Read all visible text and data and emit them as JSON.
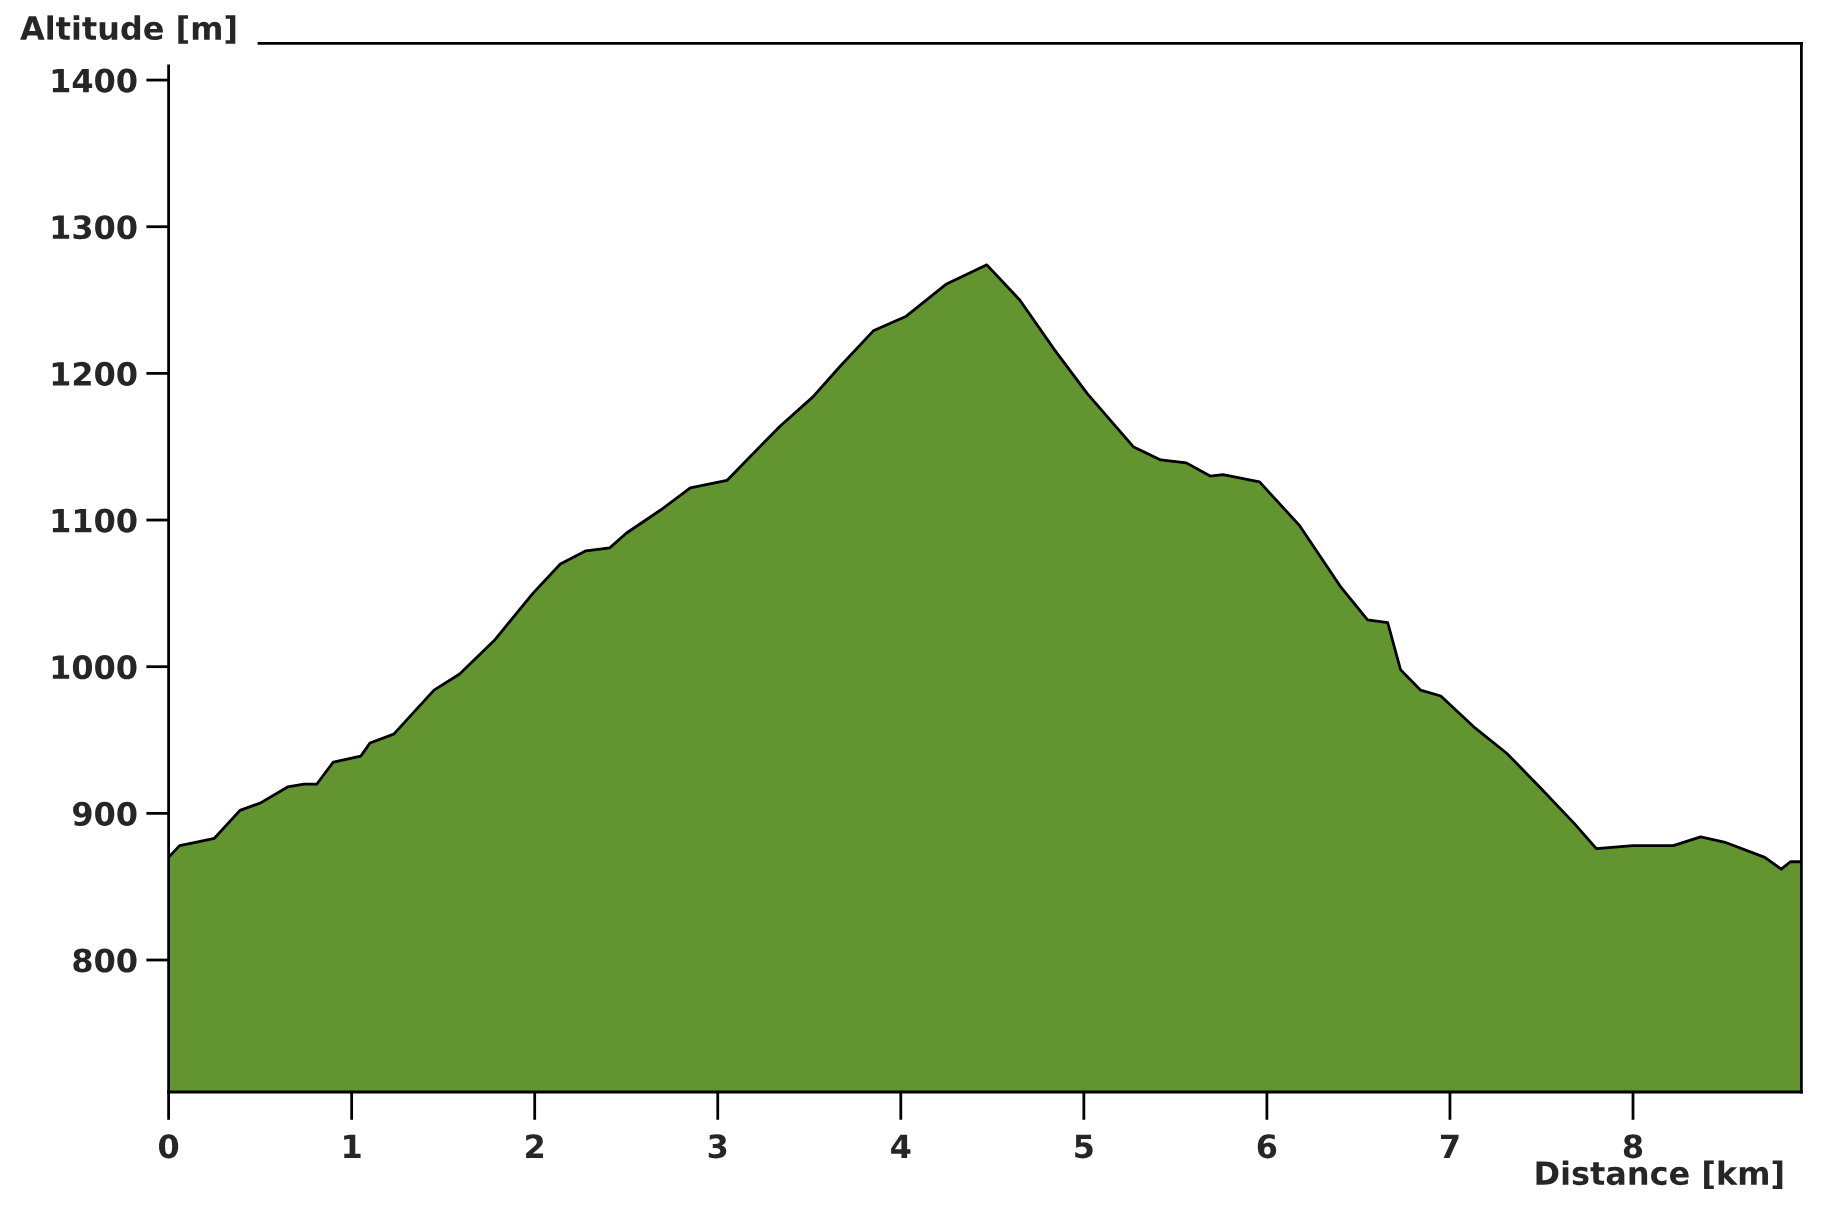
{
  "chart_data": {
    "type": "area",
    "xlabel": "Distance [km]",
    "ylabel": "Altitude [m]",
    "xlim": [
      0,
      8.92
    ],
    "xticks": [
      0,
      1,
      2,
      3,
      4,
      5,
      6,
      7,
      8
    ],
    "ylim": [
      710,
      1425
    ],
    "yticks": [
      800,
      900,
      1000,
      1100,
      1200,
      1300,
      1400
    ],
    "series": [
      {
        "color": "#62942f",
        "x": [
          0.0,
          0.06,
          0.14,
          0.25,
          0.39,
          0.5,
          0.65,
          0.74,
          0.81,
          0.9,
          1.05,
          1.1,
          1.23,
          1.45,
          1.59,
          1.78,
          1.99,
          2.14,
          2.28,
          2.41,
          2.5,
          2.69,
          2.85,
          3.05,
          3.34,
          3.52,
          3.67,
          3.85,
          4.03,
          4.25,
          4.47,
          4.65,
          4.84,
          5.02,
          5.27,
          5.42,
          5.56,
          5.69,
          5.76,
          5.96,
          6.18,
          6.4,
          6.55,
          6.66,
          6.73,
          6.84,
          6.95,
          7.13,
          7.31,
          7.49,
          7.68,
          7.8,
          7.9,
          8.0,
          8.22,
          8.37,
          8.51,
          8.72,
          8.81,
          8.86,
          8.92
        ],
        "values": [
          870,
          878,
          880,
          883,
          902,
          907,
          918,
          920,
          920,
          935,
          939,
          948,
          954,
          984,
          995,
          1018,
          1050,
          1070,
          1079,
          1081,
          1091,
          1107,
          1122,
          1127,
          1164,
          1184,
          1205,
          1229,
          1239,
          1261,
          1274,
          1250,
          1216,
          1186,
          1150,
          1141,
          1139,
          1130,
          1131,
          1126,
          1096,
          1055,
          1032,
          1030,
          998,
          984,
          980,
          959,
          941,
          918,
          893,
          876,
          877,
          878,
          878,
          884,
          880,
          870,
          862,
          867,
          867
        ]
      }
    ]
  }
}
